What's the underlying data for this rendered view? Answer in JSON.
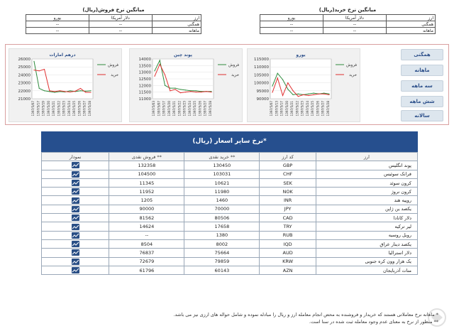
{
  "avg_buy": {
    "title": "میانگین نرخ خرید(ریال)",
    "col_currency": "ارز",
    "col_usd": "دلار آمریکا",
    "col_eur": "یورو",
    "rows": [
      {
        "label": "همگنی",
        "usd": "--",
        "eur": "--"
      },
      {
        "label": "ماهانه",
        "usd": "--",
        "eur": "--"
      }
    ]
  },
  "avg_sell": {
    "title": "میانگین نرخ فروش(ریال)",
    "col_currency": "ارز",
    "col_usd": "دلار آمریکا",
    "col_eur": "یورو",
    "rows": [
      {
        "label": "همگنی",
        "usd": "--",
        "eur": "--"
      },
      {
        "label": "ماهانه",
        "usd": "--",
        "eur": "--"
      }
    ]
  },
  "period_buttons": [
    "همگنی",
    "ماهانه",
    "سه ماهه",
    "شش ماهه",
    "سالانه"
  ],
  "legend": {
    "sell": "فروش",
    "buy": "خرید"
  },
  "colors": {
    "sell": "#2e8b3d",
    "buy": "#e03030",
    "header": "#264f8e"
  },
  "chart_data": [
    {
      "type": "line",
      "title": "یورو",
      "x": [
        "1397/5/07",
        "1397/5/13",
        "1397/5/17",
        "1397/5/20",
        "1397/5/21",
        "1397/5/22",
        "1397/5/23",
        "1397/5/24",
        "1397/5/25",
        "1397/5/26",
        "1397/5/27",
        "1397/5/28"
      ],
      "yticks": [
        115000,
        110000,
        105000,
        100000,
        95000,
        90000
      ],
      "ylim": [
        90000,
        115000
      ],
      "series": [
        {
          "name": "فروش",
          "values": [
            98000,
            106000,
            102000,
            96000,
            92500,
            93000,
            92500,
            93000,
            93500,
            93000,
            93500,
            93000
          ]
        },
        {
          "name": "خرید",
          "values": [
            94000,
            103000,
            92000,
            100000,
            95000,
            91500,
            92500,
            92000,
            92500,
            93000,
            93000,
            92500
          ]
        }
      ]
    },
    {
      "type": "line",
      "title": "پوند چین",
      "x": [
        "1397/5/03",
        "1397/5/07",
        "1397/5/17",
        "1397/5/20",
        "1397/5/21",
        "1397/5/22",
        "1397/5/23",
        "1397/5/24",
        "1397/5/25",
        "1397/5/26",
        "1397/5/27",
        "1397/5/28"
      ],
      "yticks": [
        14000,
        13500,
        13000,
        12500,
        12000,
        11500,
        11000
      ],
      "ylim": [
        11000,
        14000
      ],
      "series": [
        {
          "name": "فروش",
          "values": [
            13100,
            13900,
            12000,
            11800,
            11800,
            11700,
            11650,
            11600,
            11600,
            11550,
            11550,
            11550
          ]
        },
        {
          "name": "خرید",
          "values": [
            12700,
            13600,
            12800,
            11600,
            11700,
            11450,
            11500,
            11550,
            11500,
            11500,
            11550,
            11500
          ]
        }
      ]
    },
    {
      "type": "line",
      "title": "درهم امارات",
      "x": [
        "1397/5/07",
        "1397/5/17",
        "1397/5/19",
        "1397/5/20",
        "1397/5/21",
        "1397/5/22",
        "1397/5/23",
        "1397/5/24",
        "1397/5/25",
        "1397/5/26",
        "1397/5/27",
        "1397/5/28"
      ],
      "yticks": [
        26000,
        25000,
        24000,
        23000,
        22000,
        21000
      ],
      "ylim": [
        21000,
        26000
      ],
      "series": [
        {
          "name": "فروش",
          "values": [
            25700,
            22300,
            22000,
            21900,
            21800,
            21900,
            21850,
            22000,
            21900,
            22000,
            21950,
            22000
          ]
        },
        {
          "name": "خرید",
          "values": [
            24600,
            24500,
            24700,
            22000,
            21900,
            22000,
            21900,
            21850,
            21950,
            22300,
            21800,
            21800
          ]
        }
      ]
    }
  ],
  "rates": {
    "title": "نرخ سایر اسعار (ریال)*",
    "headers": {
      "currency": "ارز",
      "code": "کد ارز",
      "buy": "خرید نقدی **",
      "sell": "فروش نقدی **",
      "chart": "نمودار"
    },
    "rows": [
      {
        "name": "پوند انگلیس",
        "code": "GBP",
        "buy": "130450",
        "sell": "132358"
      },
      {
        "name": "فرانک سوئیس",
        "code": "CHF",
        "buy": "103031",
        "sell": "104500"
      },
      {
        "name": "کرون سوئد",
        "code": "SEK",
        "buy": "10621",
        "sell": "11345"
      },
      {
        "name": "کرون نروژ",
        "code": "NOK",
        "buy": "11980",
        "sell": "11952"
      },
      {
        "name": "روپیه هند",
        "code": "INR",
        "buy": "1460",
        "sell": "1205"
      },
      {
        "name": "یکصد ین ژاپن",
        "code": "JPY",
        "buy": "70000",
        "sell": "90000"
      },
      {
        "name": "دلار کانادا",
        "code": "CAD",
        "buy": "80506",
        "sell": "81562"
      },
      {
        "name": "لیر ترکیه",
        "code": "TRY",
        "buy": "17658",
        "sell": "14624"
      },
      {
        "name": "روبل روسیه",
        "code": "RUB",
        "buy": "1380",
        "sell": "--"
      },
      {
        "name": "یکصد دینار عراق",
        "code": "IQD",
        "buy": "8002",
        "sell": "8504"
      },
      {
        "name": "دلار استرالیا",
        "code": "AUD",
        "buy": "75664",
        "sell": "76837"
      },
      {
        "name": "یک هزار وون کره جنوبی",
        "code": "KRW",
        "buy": "79859",
        "sell": "72679"
      },
      {
        "name": "منات آذربایجان",
        "code": "AZN",
        "buy": "60143",
        "sell": "61796"
      }
    ]
  },
  "footnote": {
    "line1": "* ماهانه نرخ معاملاتی هستند که خریدار و فروشنده به محض انجام معامله ارز و ریال را مبادله نموده و شامل حواله های ارزی نیز می باشد.",
    "line2": "** منظور از نرخ به معنای عدم وجود معامله ثبت شده در سنا است."
  }
}
